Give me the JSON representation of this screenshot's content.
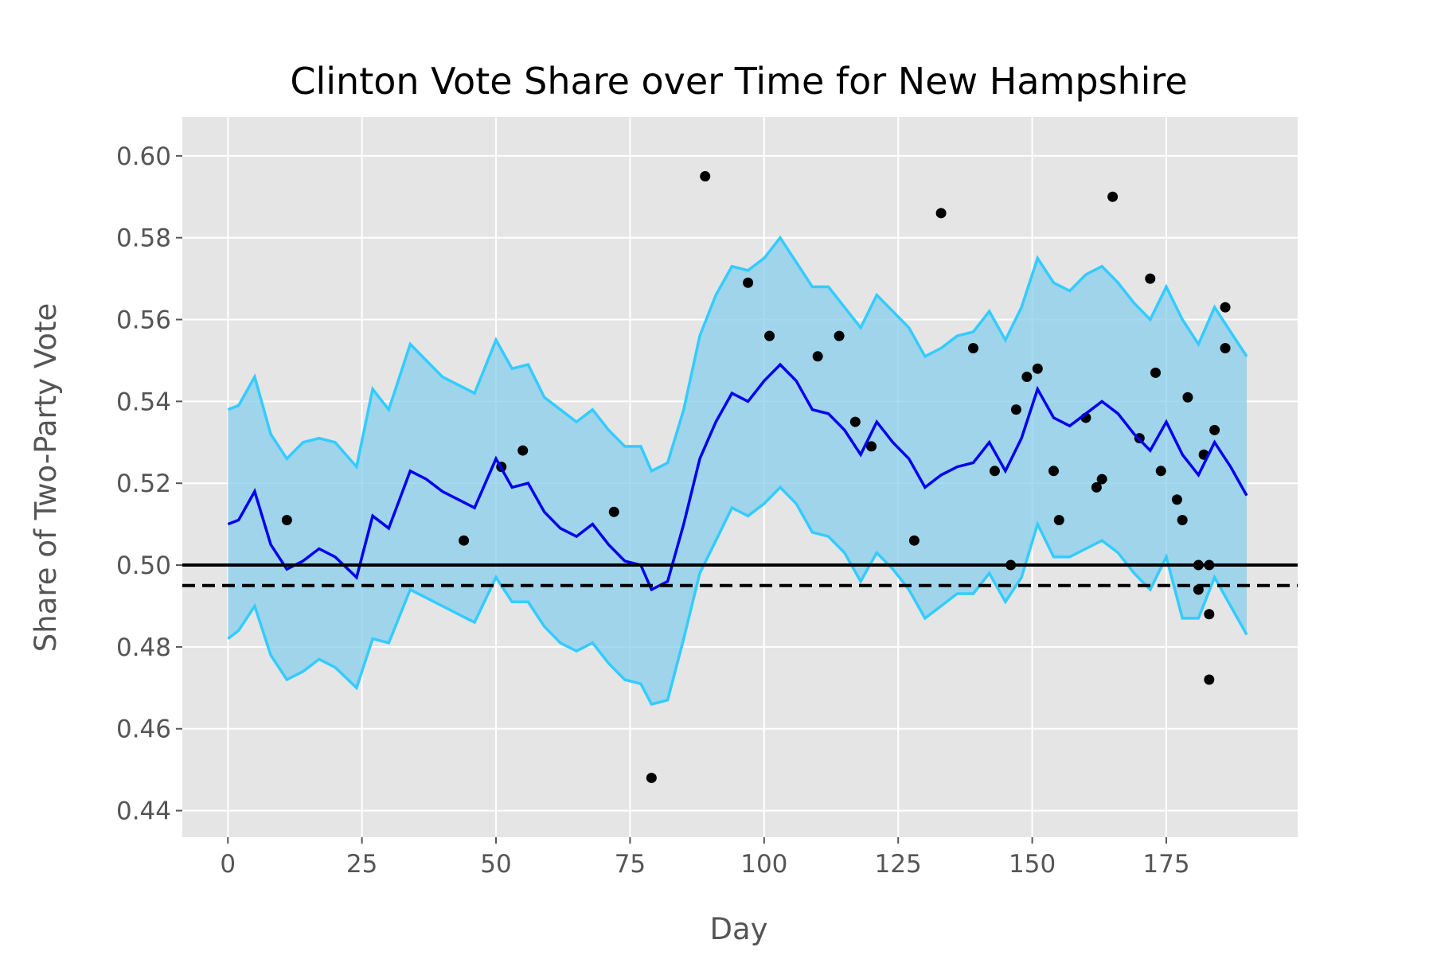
{
  "chart_data": {
    "type": "line",
    "title": "Clinton Vote Share over Time for New Hampshire",
    "xlabel": "Day",
    "ylabel": "Share of Two-Party Vote",
    "xlim": [
      -8.5,
      199.5
    ],
    "ylim": [
      0.4335,
      0.6095
    ],
    "xticks": [
      0,
      25,
      50,
      75,
      100,
      125,
      150,
      175
    ],
    "yticks": [
      0.44,
      0.46,
      0.48,
      0.5,
      0.52,
      0.54,
      0.56,
      0.58,
      0.6
    ],
    "xtick_labels": [
      "0",
      "25",
      "50",
      "75",
      "100",
      "125",
      "150",
      "175"
    ],
    "ytick_labels": [
      "0.44",
      "0.46",
      "0.48",
      "0.50",
      "0.52",
      "0.54",
      "0.56",
      "0.58",
      "0.60"
    ],
    "grid": true,
    "style": "ggplot",
    "colors": {
      "background": "#E5E5E5",
      "grid": "#FFFFFF",
      "band_fill": "#87CEEB",
      "band_edge": "#33CCFF",
      "mean_line": "#0000EE",
      "points": "#000000",
      "reference": "#000000"
    },
    "reference_lines": [
      {
        "y": 0.5,
        "style": "solid"
      },
      {
        "y": 0.495,
        "style": "dashed"
      }
    ],
    "series": [
      {
        "role": "mean",
        "x": [
          0,
          2,
          5,
          8,
          11,
          14,
          17,
          20,
          24,
          27,
          30,
          34,
          37,
          40,
          43,
          46,
          50,
          53,
          56,
          59,
          62,
          65,
          68,
          71,
          74,
          77,
          79,
          82,
          85,
          88,
          91,
          94,
          97,
          100,
          103,
          106,
          109,
          112,
          115,
          118,
          121,
          124,
          127,
          130,
          133,
          136,
          139,
          142,
          145,
          148,
          151,
          154,
          157,
          160,
          163,
          166,
          169,
          172,
          175,
          178,
          181,
          184,
          187,
          190
        ],
        "y": [
          0.51,
          0.511,
          0.518,
          0.505,
          0.499,
          0.501,
          0.504,
          0.502,
          0.497,
          0.512,
          0.509,
          0.523,
          0.521,
          0.518,
          0.516,
          0.514,
          0.526,
          0.519,
          0.52,
          0.513,
          0.509,
          0.507,
          0.51,
          0.505,
          0.501,
          0.5,
          0.494,
          0.496,
          0.51,
          0.526,
          0.535,
          0.542,
          0.54,
          0.545,
          0.549,
          0.545,
          0.538,
          0.537,
          0.533,
          0.527,
          0.535,
          0.53,
          0.526,
          0.519,
          0.522,
          0.524,
          0.525,
          0.53,
          0.523,
          0.531,
          0.543,
          0.536,
          0.534,
          0.537,
          0.54,
          0.537,
          0.532,
          0.528,
          0.535,
          0.527,
          0.522,
          0.53,
          0.524,
          0.517
        ]
      },
      {
        "role": "upper",
        "x": [
          0,
          2,
          5,
          8,
          11,
          14,
          17,
          20,
          24,
          27,
          30,
          34,
          37,
          40,
          43,
          46,
          50,
          53,
          56,
          59,
          62,
          65,
          68,
          71,
          74,
          77,
          79,
          82,
          85,
          88,
          91,
          94,
          97,
          100,
          103,
          106,
          109,
          112,
          115,
          118,
          121,
          124,
          127,
          130,
          133,
          136,
          139,
          142,
          145,
          148,
          151,
          154,
          157,
          160,
          163,
          166,
          169,
          172,
          175,
          178,
          181,
          184,
          187,
          190
        ],
        "y": [
          0.538,
          0.539,
          0.546,
          0.532,
          0.526,
          0.53,
          0.531,
          0.53,
          0.524,
          0.543,
          0.538,
          0.554,
          0.55,
          0.546,
          0.544,
          0.542,
          0.555,
          0.548,
          0.549,
          0.541,
          0.538,
          0.535,
          0.538,
          0.533,
          0.529,
          0.529,
          0.523,
          0.525,
          0.538,
          0.556,
          0.566,
          0.573,
          0.572,
          0.575,
          0.58,
          0.574,
          0.568,
          0.568,
          0.563,
          0.558,
          0.566,
          0.562,
          0.558,
          0.551,
          0.553,
          0.556,
          0.557,
          0.562,
          0.555,
          0.563,
          0.575,
          0.569,
          0.567,
          0.571,
          0.573,
          0.569,
          0.564,
          0.56,
          0.568,
          0.56,
          0.554,
          0.563,
          0.557,
          0.551
        ]
      },
      {
        "role": "lower",
        "x": [
          0,
          2,
          5,
          8,
          11,
          14,
          17,
          20,
          24,
          27,
          30,
          34,
          37,
          40,
          43,
          46,
          50,
          53,
          56,
          59,
          62,
          65,
          68,
          71,
          74,
          77,
          79,
          82,
          85,
          88,
          91,
          94,
          97,
          100,
          103,
          106,
          109,
          112,
          115,
          118,
          121,
          124,
          127,
          130,
          133,
          136,
          139,
          142,
          145,
          148,
          151,
          154,
          157,
          160,
          163,
          166,
          169,
          172,
          175,
          178,
          181,
          184,
          187,
          190
        ],
        "y": [
          0.482,
          0.484,
          0.49,
          0.478,
          0.472,
          0.474,
          0.477,
          0.475,
          0.47,
          0.482,
          0.481,
          0.494,
          0.492,
          0.49,
          0.488,
          0.486,
          0.497,
          0.491,
          0.491,
          0.485,
          0.481,
          0.479,
          0.481,
          0.476,
          0.472,
          0.471,
          0.466,
          0.467,
          0.482,
          0.498,
          0.506,
          0.514,
          0.512,
          0.515,
          0.519,
          0.515,
          0.508,
          0.507,
          0.503,
          0.496,
          0.503,
          0.499,
          0.494,
          0.487,
          0.49,
          0.493,
          0.493,
          0.498,
          0.491,
          0.497,
          0.51,
          0.502,
          0.502,
          0.504,
          0.506,
          0.503,
          0.498,
          0.494,
          0.502,
          0.487,
          0.487,
          0.497,
          0.49,
          0.483
        ]
      },
      {
        "role": "polls",
        "type": "scatter",
        "x": [
          11,
          44,
          51,
          55,
          72,
          79,
          89,
          97,
          101,
          110,
          114,
          117,
          120,
          128,
          133,
          139,
          143,
          146,
          147,
          149,
          151,
          154,
          155,
          160,
          162,
          163,
          165,
          170,
          172,
          173,
          174,
          177,
          178,
          179,
          181,
          181,
          182,
          183,
          183,
          183,
          184,
          186,
          186
        ],
        "y": [
          0.511,
          0.506,
          0.524,
          0.528,
          0.513,
          0.448,
          0.595,
          0.569,
          0.556,
          0.551,
          0.556,
          0.535,
          0.529,
          0.506,
          0.586,
          0.553,
          0.523,
          0.5,
          0.538,
          0.546,
          0.548,
          0.523,
          0.511,
          0.536,
          0.519,
          0.521,
          0.59,
          0.531,
          0.57,
          0.547,
          0.523,
          0.516,
          0.511,
          0.541,
          0.5,
          0.494,
          0.527,
          0.488,
          0.472,
          0.5,
          0.533,
          0.553,
          0.563
        ]
      }
    ]
  }
}
